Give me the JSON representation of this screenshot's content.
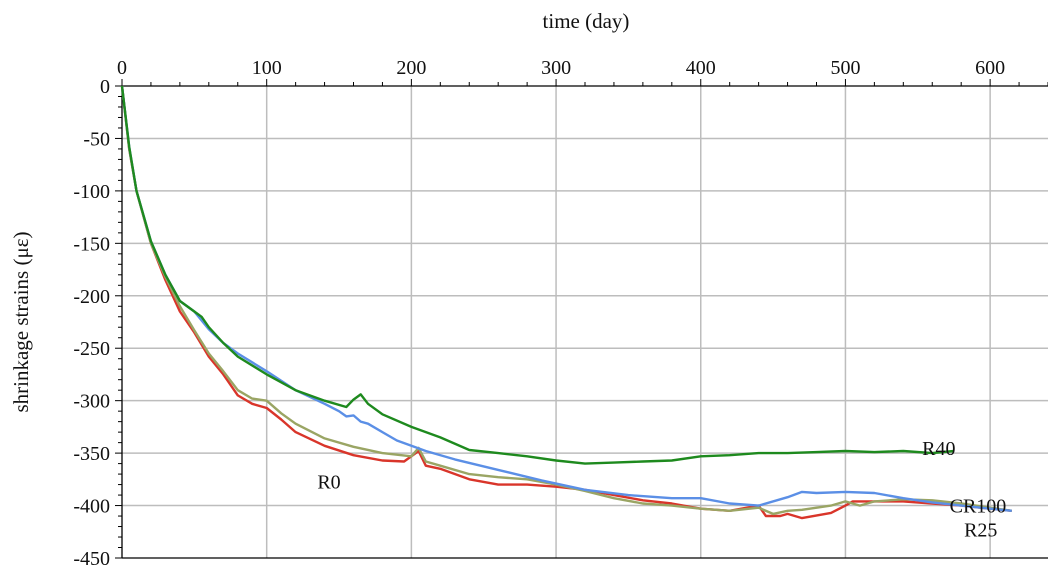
{
  "chart_data": {
    "type": "line",
    "title": "",
    "xlabel": "time (day)",
    "ylabel": "shrinkage strains (με)",
    "x_axis_position": "top",
    "xlim": [
      0,
      640
    ],
    "ylim": [
      -450,
      0
    ],
    "x_ticks": [
      0,
      100,
      200,
      300,
      400,
      500,
      600
    ],
    "y_ticks": [
      0,
      -50,
      -100,
      -150,
      -200,
      -250,
      -300,
      -350,
      -400,
      -450
    ],
    "grid": true,
    "legend": "none",
    "series": [
      {
        "name": "R0",
        "color": "#d9352a",
        "label_at": [
          135,
          -377
        ],
        "x": [
          0,
          5,
          10,
          20,
          30,
          40,
          50,
          60,
          70,
          80,
          90,
          100,
          110,
          120,
          140,
          160,
          180,
          195,
          205,
          210,
          220,
          240,
          260,
          280,
          300,
          320,
          340,
          360,
          380,
          400,
          420,
          440,
          445,
          455,
          460,
          470,
          490,
          500,
          505,
          520,
          540,
          560,
          580,
          600,
          615
        ],
        "y": [
          0,
          -60,
          -100,
          -150,
          -185,
          -215,
          -235,
          -258,
          -275,
          -295,
          -303,
          -307,
          -318,
          -330,
          -343,
          -352,
          -357,
          -358,
          -348,
          -362,
          -365,
          -375,
          -380,
          -380,
          -382,
          -385,
          -390,
          -395,
          -398,
          -403,
          -405,
          -400,
          -410,
          -410,
          -408,
          -412,
          -407,
          -400,
          -396,
          -396,
          -396,
          -398,
          -400,
          -403,
          -405
        ]
      },
      {
        "name": "R25",
        "color": "#9aa564",
        "label_at": [
          582,
          -423
        ],
        "x": [
          0,
          5,
          10,
          20,
          30,
          40,
          50,
          60,
          70,
          80,
          90,
          100,
          110,
          120,
          140,
          160,
          180,
          200,
          205,
          210,
          220,
          240,
          260,
          280,
          300,
          320,
          340,
          360,
          380,
          400,
          420,
          440,
          450,
          460,
          470,
          490,
          500,
          510,
          520,
          540,
          560,
          580,
          600,
          615
        ],
        "y": [
          0,
          -60,
          -100,
          -150,
          -182,
          -210,
          -233,
          -255,
          -272,
          -290,
          -298,
          -300,
          -312,
          -322,
          -336,
          -344,
          -350,
          -353,
          -345,
          -358,
          -362,
          -370,
          -373,
          -375,
          -380,
          -386,
          -393,
          -398,
          -400,
          -403,
          -405,
          -402,
          -408,
          -405,
          -404,
          -400,
          -396,
          -400,
          -396,
          -394,
          -395,
          -398,
          -402,
          -405
        ]
      },
      {
        "name": "CR100",
        "color": "#5b8fe6",
        "label_at": [
          572,
          -400
        ],
        "x": [
          0,
          5,
          10,
          20,
          30,
          40,
          50,
          60,
          70,
          80,
          100,
          120,
          140,
          150,
          155,
          160,
          165,
          170,
          180,
          190,
          200,
          210,
          230,
          260,
          290,
          320,
          350,
          380,
          400,
          420,
          440,
          460,
          470,
          480,
          500,
          520,
          540,
          560,
          580,
          600,
          615
        ],
        "y": [
          0,
          -58,
          -100,
          -148,
          -180,
          -205,
          -215,
          -232,
          -245,
          -255,
          -272,
          -290,
          -303,
          -310,
          -315,
          -314,
          -320,
          -322,
          -330,
          -338,
          -343,
          -348,
          -356,
          -366,
          -376,
          -385,
          -390,
          -393,
          -393,
          -398,
          -400,
          -392,
          -387,
          -388,
          -387,
          -388,
          -393,
          -397,
          -400,
          -403,
          -405
        ]
      },
      {
        "name": "R40",
        "color": "#1e8a1e",
        "label_at": [
          553,
          -345
        ],
        "x": [
          0,
          5,
          10,
          20,
          30,
          40,
          50,
          55,
          60,
          70,
          80,
          100,
          120,
          140,
          155,
          160,
          165,
          170,
          180,
          200,
          220,
          240,
          260,
          280,
          300,
          320,
          340,
          360,
          380,
          400,
          420,
          440,
          460,
          480,
          500,
          520,
          540,
          560,
          575
        ],
        "y": [
          0,
          -58,
          -100,
          -148,
          -180,
          -205,
          -215,
          -220,
          -230,
          -245,
          -258,
          -275,
          -290,
          -300,
          -306,
          -299,
          -294,
          -303,
          -313,
          -325,
          -335,
          -347,
          -350,
          -353,
          -357,
          -360,
          -359,
          -358,
          -357,
          -353,
          -352,
          -350,
          -350,
          -349,
          -348,
          -349,
          -348,
          -350,
          -348
        ]
      }
    ]
  }
}
